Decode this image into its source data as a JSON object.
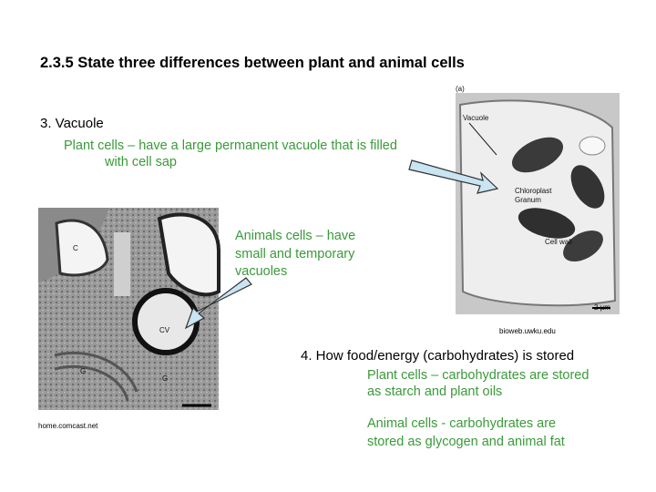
{
  "header": {
    "title": "2.3.5 State three differences between plant and animal cells"
  },
  "sections": [
    {
      "heading": "3. Vacuole",
      "plant_lines": [
        "Plant cells – have a large permanent vacuole that is filled",
        "with cell sap"
      ],
      "animal_lines": [
        "Animals cells – have",
        "small and temporary",
        "vacuoles"
      ]
    },
    {
      "heading": "4. How food/energy (carbohydrates) is stored",
      "plant_lines": [
        "Plant cells – carbohydrates are stored",
        "as starch and plant oils"
      ],
      "animal_lines": [
        "Animal cells - carbohydrates are",
        "stored as glycogen and animal fat"
      ]
    }
  ],
  "images": [
    {
      "source": "home.comcast.net",
      "labels": [
        "C",
        "CV",
        "G",
        "G"
      ]
    },
    {
      "source": "bioweb.uwku.edu",
      "labels": [
        "(a)",
        "Vacuole",
        "Chloroplast",
        "Granum",
        "Cell wall",
        "2 µm"
      ]
    }
  ]
}
